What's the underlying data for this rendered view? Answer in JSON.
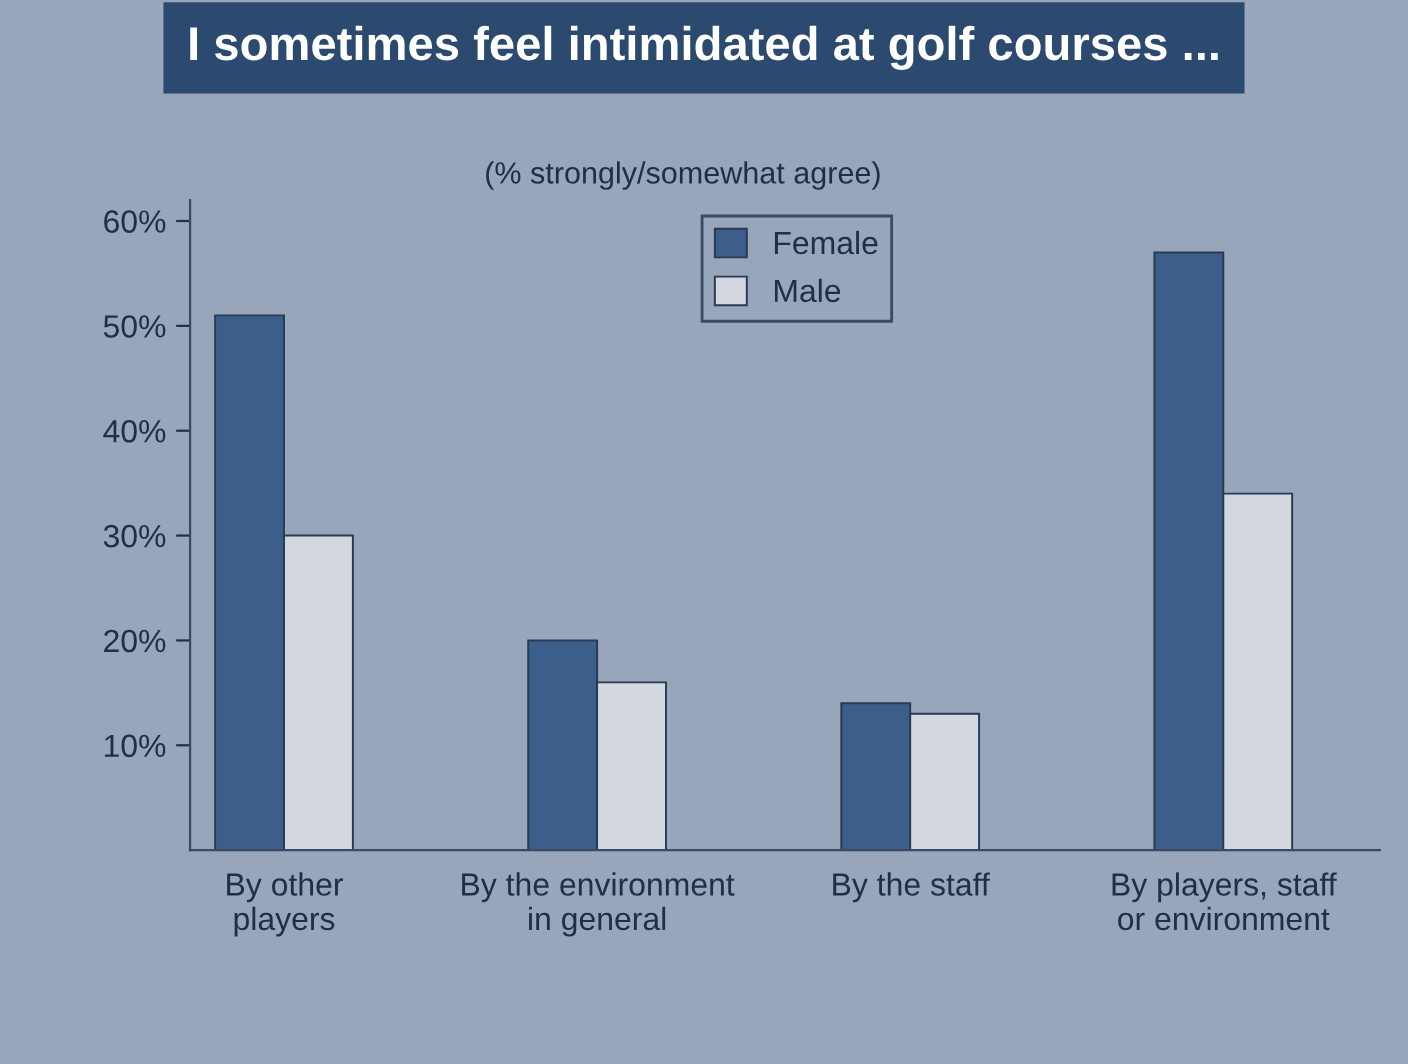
{
  "chart_data": {
    "type": "bar",
    "title": "I sometimes feel intimidated at golf courses ...",
    "subtitle": "(% strongly/somewhat agree)",
    "categories": [
      "By other\nplayers",
      "By the environment\nin general",
      "By the staff",
      "By players, staff\nor environment"
    ],
    "series": [
      {
        "name": "Female",
        "color": "#3b5f8a",
        "values": [
          51,
          20,
          14,
          57
        ]
      },
      {
        "name": "Male",
        "color": "#d3d7df",
        "values": [
          30,
          16,
          13,
          34
        ]
      }
    ],
    "ylim": [
      0,
      62
    ],
    "yticks": [
      {
        "value": 10,
        "label": "10%"
      },
      {
        "value": 20,
        "label": "20%"
      },
      {
        "value": 30,
        "label": "30%"
      },
      {
        "value": 40,
        "label": "40%"
      },
      {
        "value": 50,
        "label": "50%"
      },
      {
        "value": 60,
        "label": "60%"
      }
    ],
    "grid": false,
    "legend": "top"
  }
}
